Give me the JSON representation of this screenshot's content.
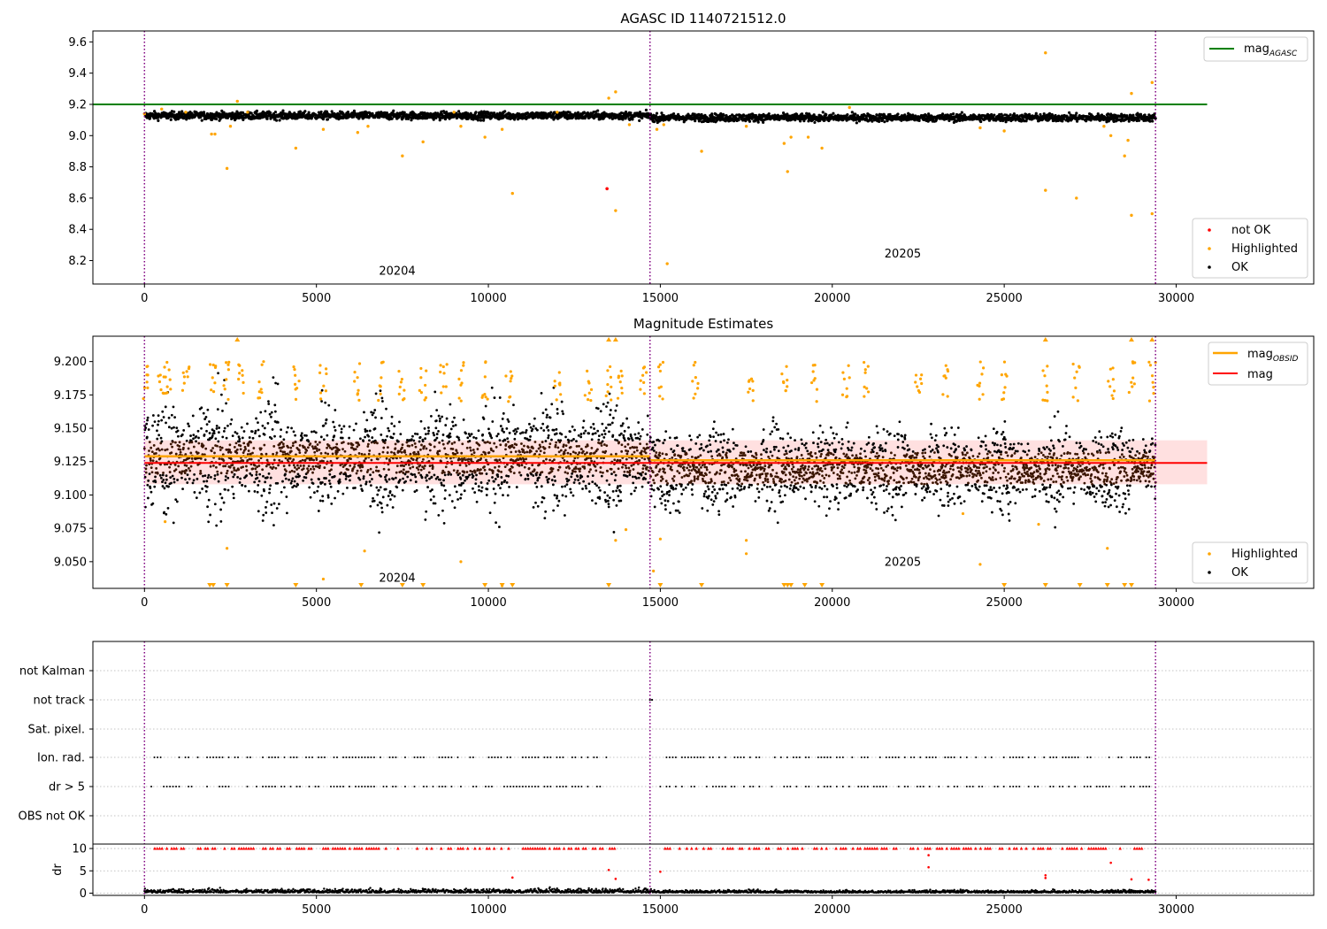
{
  "chart_data": [
    {
      "type": "scatter",
      "title": "AGASC ID 1140721512.0",
      "xlim": [
        -1500,
        34000
      ],
      "ylim": [
        8.05,
        9.67
      ],
      "xticks": [
        0,
        5000,
        10000,
        15000,
        20000,
        25000,
        30000
      ],
      "yticks": [
        8.2,
        8.4,
        8.6,
        8.8,
        9.0,
        9.2,
        9.4,
        9.6
      ],
      "obsid_boundaries": [
        0,
        14700,
        29400
      ],
      "obsid_labels": [
        {
          "text": "20204",
          "x": 7350,
          "y": 8.11
        },
        {
          "text": "20205",
          "x": 22050,
          "y": 8.22
        }
      ],
      "reference_lines": [
        {
          "name": "mag",
          "subscript": "AGASC",
          "value": 9.2,
          "x": [
            -1500,
            30900
          ],
          "color": "#008000"
        }
      ],
      "legend_top": [
        {
          "label": "mag",
          "subscript": "AGASC",
          "color": "#008000",
          "kind": "line"
        }
      ],
      "legend_bottom": [
        {
          "label": "not OK",
          "color": "#ff0000",
          "kind": "point"
        },
        {
          "label": "Highlighted",
          "color": "#ffa500",
          "kind": "point"
        },
        {
          "label": "OK",
          "color": "#000000",
          "kind": "point"
        }
      ],
      "series": [
        {
          "name": "OK",
          "color": "#000000",
          "band": {
            "x": [
              0,
              29400
            ],
            "segments": [
              {
                "x0": 0,
                "x1": 14700,
                "center": 9.128
              },
              {
                "x0": 14700,
                "x1": 29400,
                "center": 9.115
              }
            ],
            "spread": 0.035
          }
        },
        {
          "name": "Highlighted",
          "color": "#ffa500",
          "points": [
            [
              0,
              9.14
            ],
            [
              500,
              9.17
            ],
            [
              1200,
              9.15
            ],
            [
              1950,
              9.01
            ],
            [
              2050,
              9.01
            ],
            [
              2400,
              8.79
            ],
            [
              2500,
              9.06
            ],
            [
              2700,
              9.22
            ],
            [
              3000,
              9.15
            ],
            [
              4400,
              8.92
            ],
            [
              5200,
              9.04
            ],
            [
              6200,
              9.02
            ],
            [
              6500,
              9.06
            ],
            [
              7500,
              8.87
            ],
            [
              8100,
              8.96
            ],
            [
              9000,
              9.15
            ],
            [
              9200,
              9.06
            ],
            [
              9900,
              8.99
            ],
            [
              10400,
              9.04
            ],
            [
              10700,
              8.63
            ],
            [
              12000,
              9.15
            ],
            [
              13500,
              9.24
            ],
            [
              13700,
              9.28
            ],
            [
              13700,
              8.52
            ],
            [
              14100,
              9.07
            ],
            [
              14900,
              9.04
            ],
            [
              15100,
              9.07
            ],
            [
              15200,
              8.18
            ],
            [
              16200,
              8.9
            ],
            [
              17500,
              9.06
            ],
            [
              18600,
              8.95
            ],
            [
              18700,
              8.77
            ],
            [
              18800,
              8.99
            ],
            [
              19300,
              8.99
            ],
            [
              19700,
              8.92
            ],
            [
              20500,
              9.18
            ],
            [
              24300,
              9.05
            ],
            [
              25000,
              9.03
            ],
            [
              26200,
              9.53
            ],
            [
              26200,
              8.65
            ],
            [
              27100,
              8.6
            ],
            [
              27900,
              9.06
            ],
            [
              28100,
              9.0
            ],
            [
              28500,
              8.87
            ],
            [
              28600,
              8.97
            ],
            [
              28700,
              9.27
            ],
            [
              28700,
              8.49
            ],
            [
              29300,
              9.34
            ],
            [
              29300,
              8.5
            ]
          ]
        },
        {
          "name": "not OK",
          "color": "#ff0000",
          "points": [
            [
              13450,
              8.66
            ]
          ]
        }
      ]
    },
    {
      "type": "scatter",
      "title": "Magnitude Estimates",
      "xlim": [
        -1500,
        34000
      ],
      "ylim": [
        9.03,
        9.219
      ],
      "xticks": [
        0,
        5000,
        10000,
        15000,
        20000,
        25000,
        30000
      ],
      "yticks": [
        9.05,
        9.075,
        9.1,
        9.125,
        9.15,
        9.175,
        9.2
      ],
      "ytick_labels": [
        "9.050",
        "9.075",
        "9.100",
        "9.125",
        "9.150",
        "9.175",
        "9.200"
      ],
      "obsid_boundaries": [
        0,
        14700,
        29400
      ],
      "obsid_labels": [
        {
          "text": "20204",
          "x": 7350,
          "y": 9.035
        },
        {
          "text": "20205",
          "x": 22050,
          "y": 9.047
        }
      ],
      "reference_lines": [
        {
          "name": "mag",
          "subscript": "OBSID",
          "segments": [
            {
              "x": [
                0,
                14700
              ],
              "value": 9.129
            },
            {
              "x": [
                14700,
                29400
              ],
              "value": 9.126
            }
          ],
          "color": "#ffa500"
        },
        {
          "name": "mag",
          "value": 9.124,
          "x": [
            -1500,
            30900
          ],
          "color": "#ff0000",
          "band": [
            9.108,
            9.141
          ]
        }
      ],
      "legend_top": [
        {
          "label": "mag",
          "subscript": "OBSID",
          "color": "#ffa500",
          "kind": "line"
        },
        {
          "label": "mag",
          "color": "#ff0000",
          "kind": "line"
        }
      ],
      "legend_bottom": [
        {
          "label": "Highlighted",
          "color": "#ffa500",
          "kind": "point"
        },
        {
          "label": "OK",
          "color": "#000000",
          "kind": "point"
        }
      ],
      "series": [
        {
          "name": "OK",
          "color": "#000000",
          "band": {
            "segments": [
              {
                "x0": 0,
                "x1": 14700,
                "center": 9.128,
                "spread": 0.045
              },
              {
                "x0": 14700,
                "x1": 29400,
                "center": 9.12,
                "spread": 0.035
              }
            ]
          }
        },
        {
          "name": "Highlighted",
          "color": "#ffa500",
          "clusters_x": [
            0,
            500,
            700,
            1200,
            2000,
            2400,
            2800,
            3400,
            4400,
            5200,
            6200,
            6900,
            7500,
            8100,
            8700,
            9200,
            9900,
            10600,
            12000,
            12900,
            13500,
            13800,
            14500,
            15000,
            16000,
            17600,
            18600,
            19500,
            20400,
            21000,
            22500,
            23300,
            24300,
            25000,
            26200,
            27100,
            28100,
            28700,
            29300
          ],
          "low_points": [
            [
              600,
              9.08
            ],
            [
              2400,
              9.06
            ],
            [
              5200,
              9.037
            ],
            [
              6400,
              9.058
            ],
            [
              9200,
              9.05
            ],
            [
              10400,
              9.032
            ],
            [
              13700,
              9.066
            ],
            [
              14000,
              9.074
            ],
            [
              14800,
              9.043
            ],
            [
              15000,
              9.067
            ],
            [
              17500,
              9.066
            ],
            [
              17500,
              9.056
            ],
            [
              23800,
              9.086
            ],
            [
              24300,
              9.048
            ],
            [
              26000,
              9.078
            ],
            [
              28000,
              9.06
            ]
          ],
          "clipped_low_x": [
            1900,
            2000,
            2400,
            4400,
            6300,
            7500,
            8100,
            9900,
            10400,
            10700,
            13500,
            15000,
            16200,
            18600,
            18700,
            18800,
            19200,
            19700,
            25000,
            26200,
            27200,
            28000,
            28500,
            28700
          ],
          "clipped_high_x": [
            2700,
            13500,
            13700,
            26200,
            28700,
            29300
          ]
        }
      ]
    },
    {
      "type": "scatter",
      "title": "",
      "xlim": [
        -1500,
        34000
      ],
      "xticks": [
        0,
        5000,
        10000,
        15000,
        20000,
        25000,
        30000
      ],
      "obsid_boundaries": [
        0,
        14700,
        29400
      ],
      "flag_rows": [
        "not Kalman",
        "not track",
        "Sat. pixel.",
        "Ion. rad.",
        "dr > 5",
        "OBS not OK"
      ],
      "flags": {
        "not track": [
          14700,
          14760
        ],
        "Ion. rad.": "dense ticks 200-13600 and 15000-29300",
        "dr > 5": "dense ticks 200-13600 and 15000-29300"
      },
      "dr_panel": {
        "ylabel": "dr",
        "ylim": [
          -0.5,
          11
        ],
        "yticks": [
          0,
          5,
          10
        ],
        "clip_value": 10,
        "red_points": [
          [
            10700,
            3.5
          ],
          [
            13500,
            5.2
          ],
          [
            13700,
            3.2
          ],
          [
            15000,
            4.8
          ],
          [
            22800,
            8.5
          ],
          [
            22800,
            5.8
          ],
          [
            26200,
            4.0
          ],
          [
            26200,
            3.4
          ],
          [
            28100,
            6.8
          ],
          [
            28700,
            3.1
          ],
          [
            29200,
            3.0
          ]
        ]
      }
    }
  ]
}
